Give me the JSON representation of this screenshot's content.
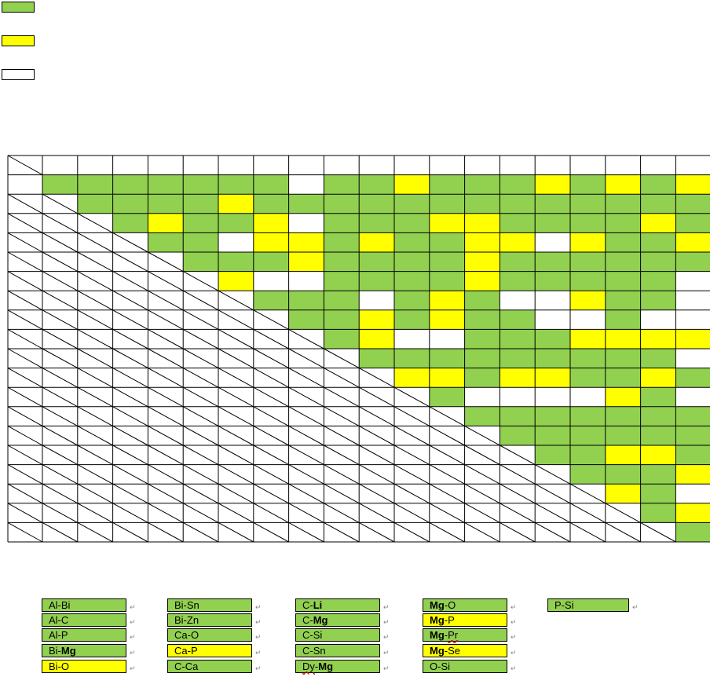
{
  "colors": {
    "green": "#92d050",
    "yellow": "#ffff00",
    "white": "#ffffff"
  },
  "legend": [
    "green",
    "yellow",
    "white"
  ],
  "matrix": {
    "rows": [
      "GGGGGGGWGGYGGGYGYGY",
      "GGGGYGGGGGGGGGGGGGG",
      "GYGGYWGGGYYGGGGYGY",
      "GGWYYGYGGYYWYGGY",
      "GGGYGGGGYGGGGGG",
      "YWWGGGGYGGGGG",
      "GGGWGYGWWYGG",
      "GGYGYGGWWGW",
      "GYWWGGGYYYY",
      "GGGGGGGGG",
      "YYGYYGGYG",
      "GWWWWYGW",
      "GGGGGGG",
      "GGGGGG",
      "GGYYG",
      "GGGY",
      "YGW",
      "GY",
      "G"
    ]
  },
  "pairs": [
    [
      {
        "parts": [
          {
            "t": "Al-Bi"
          }
        ],
        "c": "G"
      },
      {
        "parts": [
          {
            "t": "Al-C"
          }
        ],
        "c": "G"
      },
      {
        "parts": [
          {
            "t": "Al-P"
          }
        ],
        "c": "G"
      },
      {
        "parts": [
          {
            "t": "Bi-"
          },
          {
            "t": "Mg",
            "b": true
          }
        ],
        "c": "G"
      },
      {
        "parts": [
          {
            "t": "Bi-O"
          }
        ],
        "c": "Y"
      }
    ],
    [
      {
        "parts": [
          {
            "t": "Bi-Sn"
          }
        ],
        "c": "G"
      },
      {
        "parts": [
          {
            "t": "Bi-Zn"
          }
        ],
        "c": "G"
      },
      {
        "parts": [
          {
            "t": "Ca-O"
          }
        ],
        "c": "G"
      },
      {
        "parts": [
          {
            "t": "Ca-P"
          }
        ],
        "c": "Y"
      },
      {
        "parts": [
          {
            "t": "C-Ca"
          }
        ],
        "c": "G"
      }
    ],
    [
      {
        "parts": [
          {
            "t": "C-"
          },
          {
            "t": "Li",
            "b": true
          }
        ],
        "c": "G"
      },
      {
        "parts": [
          {
            "t": "C-"
          },
          {
            "t": "Mg",
            "b": true
          }
        ],
        "c": "G"
      },
      {
        "parts": [
          {
            "t": "C-Si"
          }
        ],
        "c": "G"
      },
      {
        "parts": [
          {
            "t": "C-Sn"
          }
        ],
        "c": "G"
      },
      {
        "parts": [
          {
            "t": "Dy",
            "u": true
          },
          {
            "t": "-"
          },
          {
            "t": "Mg",
            "b": true
          }
        ],
        "c": "G"
      }
    ],
    [
      {
        "parts": [
          {
            "t": "Mg",
            "b": true
          },
          {
            "t": "-O"
          }
        ],
        "c": "G"
      },
      {
        "parts": [
          {
            "t": "Mg",
            "b": true
          },
          {
            "t": "-P"
          }
        ],
        "c": "Y"
      },
      {
        "parts": [
          {
            "t": "Mg",
            "b": true
          },
          {
            "t": "-"
          },
          {
            "t": "Pr",
            "u": true
          }
        ],
        "c": "G"
      },
      {
        "parts": [
          {
            "t": "Mg",
            "b": true
          },
          {
            "t": "-Se"
          }
        ],
        "c": "Y"
      },
      {
        "parts": [
          {
            "t": "O-Si"
          }
        ],
        "c": "G"
      }
    ],
    [
      {
        "parts": [
          {
            "t": "P-Si"
          }
        ],
        "c": "G"
      }
    ]
  ]
}
